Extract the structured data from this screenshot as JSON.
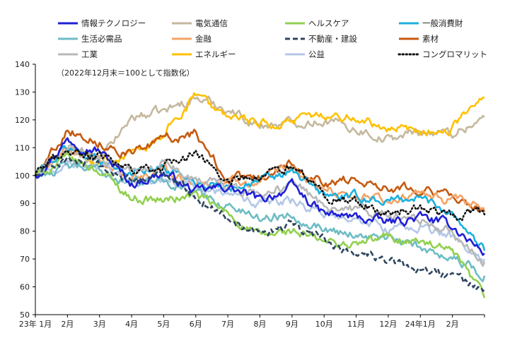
{
  "chart_data": {
    "type": "line",
    "note": "（2022年12月末＝100として指数化）",
    "ylim": [
      50,
      140
    ],
    "yticks": [
      50,
      60,
      70,
      80,
      90,
      100,
      110,
      120,
      130,
      140
    ],
    "grid": false,
    "legend_position": "top",
    "x_tick_labels": [
      "23年 1月",
      "2月",
      "3月",
      "4月",
      "5月",
      "6月",
      "7月",
      "8月",
      "9月",
      "10月",
      "11月",
      "12月",
      "24年1月",
      "2月"
    ],
    "x_months": [
      "2022-12",
      "2023-01",
      "2023-02",
      "2023-03",
      "2023-04",
      "2023-05",
      "2023-06",
      "2023-07",
      "2023-08",
      "2023-09",
      "2023-10",
      "2023-11",
      "2023-12",
      "2024-01",
      "2024-02"
    ],
    "series": [
      {
        "name": "情報テクノロジー",
        "color": "#1f1fd6",
        "dash": "solid",
        "values": [
          100,
          113,
          109,
          97,
          101,
          94,
          96,
          91,
          96,
          86,
          85,
          83,
          85,
          82,
          72
        ]
      },
      {
        "name": "電気通信",
        "color": "#c4b89e",
        "dash": "solid",
        "values": [
          100,
          108,
          105,
          121,
          123,
          128,
          124,
          118,
          119,
          120,
          117,
          113,
          116,
          115,
          121
        ]
      },
      {
        "name": "ヘルスケア",
        "color": "#92d050",
        "dash": "solid",
        "values": [
          100,
          106,
          102,
          92,
          91,
          93,
          86,
          78,
          80,
          76,
          75,
          78,
          76,
          72,
          56
        ]
      },
      {
        "name": "一般消費財",
        "color": "#1cb0e0",
        "dash": "solid",
        "values": [
          100,
          110,
          106,
          101,
          103,
          98,
          96,
          98,
          101,
          93,
          92,
          91,
          92,
          87,
          73
        ]
      },
      {
        "name": "生活必需品",
        "color": "#6ebcc4",
        "dash": "solid",
        "values": [
          100,
          103,
          102,
          97,
          99,
          94,
          89,
          85,
          86,
          81,
          79,
          77,
          74,
          71,
          64
        ]
      },
      {
        "name": "金融",
        "color": "#f4a366",
        "dash": "solid",
        "values": [
          100,
          109,
          106,
          98,
          102,
          97,
          98,
          98,
          102,
          95,
          93,
          91,
          93,
          91,
          88
        ]
      },
      {
        "name": "不動産・建設",
        "color": "#2f4660",
        "dash": "dashed",
        "values": [
          100,
          106,
          103,
          98,
          100,
          93,
          85,
          80,
          82,
          77,
          72,
          69,
          66,
          64,
          59
        ]
      },
      {
        "name": "素材",
        "color": "#c55a11",
        "dash": "solid",
        "values": [
          100,
          117,
          112,
          108,
          113,
          115,
          99,
          99,
          105,
          97,
          99,
          96,
          96,
          92,
          87
        ]
      },
      {
        "name": "工業",
        "color": "#b8b8b8",
        "dash": "solid",
        "values": [
          100,
          110,
          106,
          101,
          104,
          99,
          96,
          93,
          97,
          89,
          88,
          85,
          84,
          80,
          69
        ]
      },
      {
        "name": "エネルギー",
        "color": "#ffc000",
        "dash": "solid",
        "values": [
          100,
          110,
          105,
          107,
          115,
          129,
          120,
          119,
          119,
          122,
          121,
          117,
          116,
          117,
          128
        ]
      },
      {
        "name": "公益",
        "color": "#b4c7e7",
        "dash": "solid",
        "values": [
          100,
          105,
          102,
          97,
          99,
          96,
          93,
          90,
          91,
          86,
          84,
          81,
          82,
          78,
          70
        ]
      },
      {
        "name": "コングロマリット",
        "color": "#111111",
        "dash": "dotted",
        "values": [
          100,
          109,
          107,
          101,
          103,
          108,
          98,
          99,
          103,
          92,
          90,
          87,
          88,
          86,
          86
        ]
      }
    ]
  }
}
